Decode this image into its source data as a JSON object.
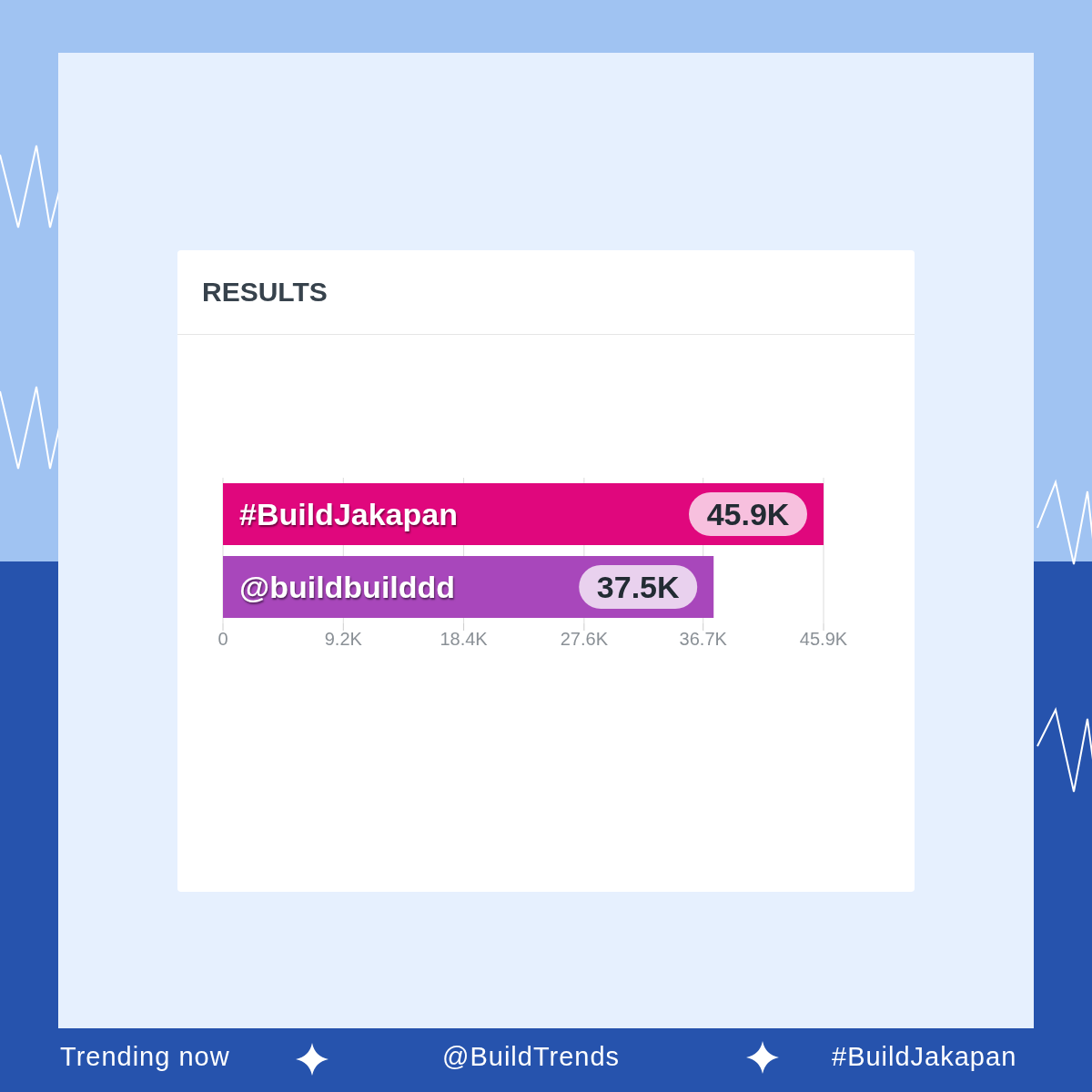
{
  "chart_data": {
    "type": "bar",
    "orientation": "horizontal",
    "title": "RESULTS",
    "categories": [
      "#BuildJakapan",
      "@buildbuilddd"
    ],
    "values": [
      45900,
      37500
    ],
    "colors": [
      "#e0077d",
      "#a847bb"
    ],
    "value_labels": [
      "45.9K",
      "37.5K"
    ],
    "xlim": [
      0,
      45900
    ],
    "xticks": [
      0,
      {
        "value": 9200,
        "label": "9.2K"
      },
      {
        "value": 18400,
        "label": "18.4K"
      },
      {
        "value": 27600,
        "label": "27.6K"
      },
      {
        "value": 36700,
        "label": "36.7K"
      },
      {
        "value": 45900,
        "label": "45.9K"
      }
    ],
    "grid": "x",
    "tick_labels": "x",
    "annotations": [
      "Trending now",
      "@BuildTrends",
      "#BuildJakapan"
    ]
  }
}
